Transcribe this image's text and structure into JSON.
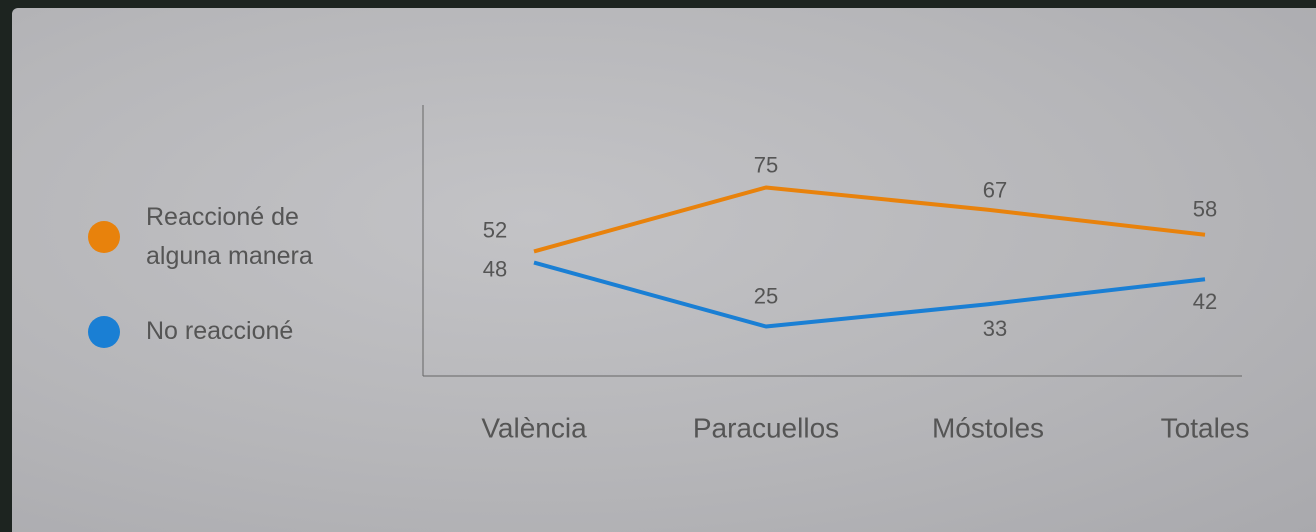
{
  "chart_data": {
    "type": "line",
    "categories": [
      "València",
      "Paracuellos",
      "Móstoles",
      "Totales"
    ],
    "series": [
      {
        "name": "Reaccioné de alguna manera",
        "color": "#e8820c",
        "values": [
          52,
          75,
          67,
          58
        ]
      },
      {
        "name": "No reaccioné",
        "color": "#1a7fd4",
        "values": [
          48,
          25,
          33,
          42
        ]
      }
    ],
    "ylim": [
      0,
      100
    ],
    "legend": "left"
  }
}
